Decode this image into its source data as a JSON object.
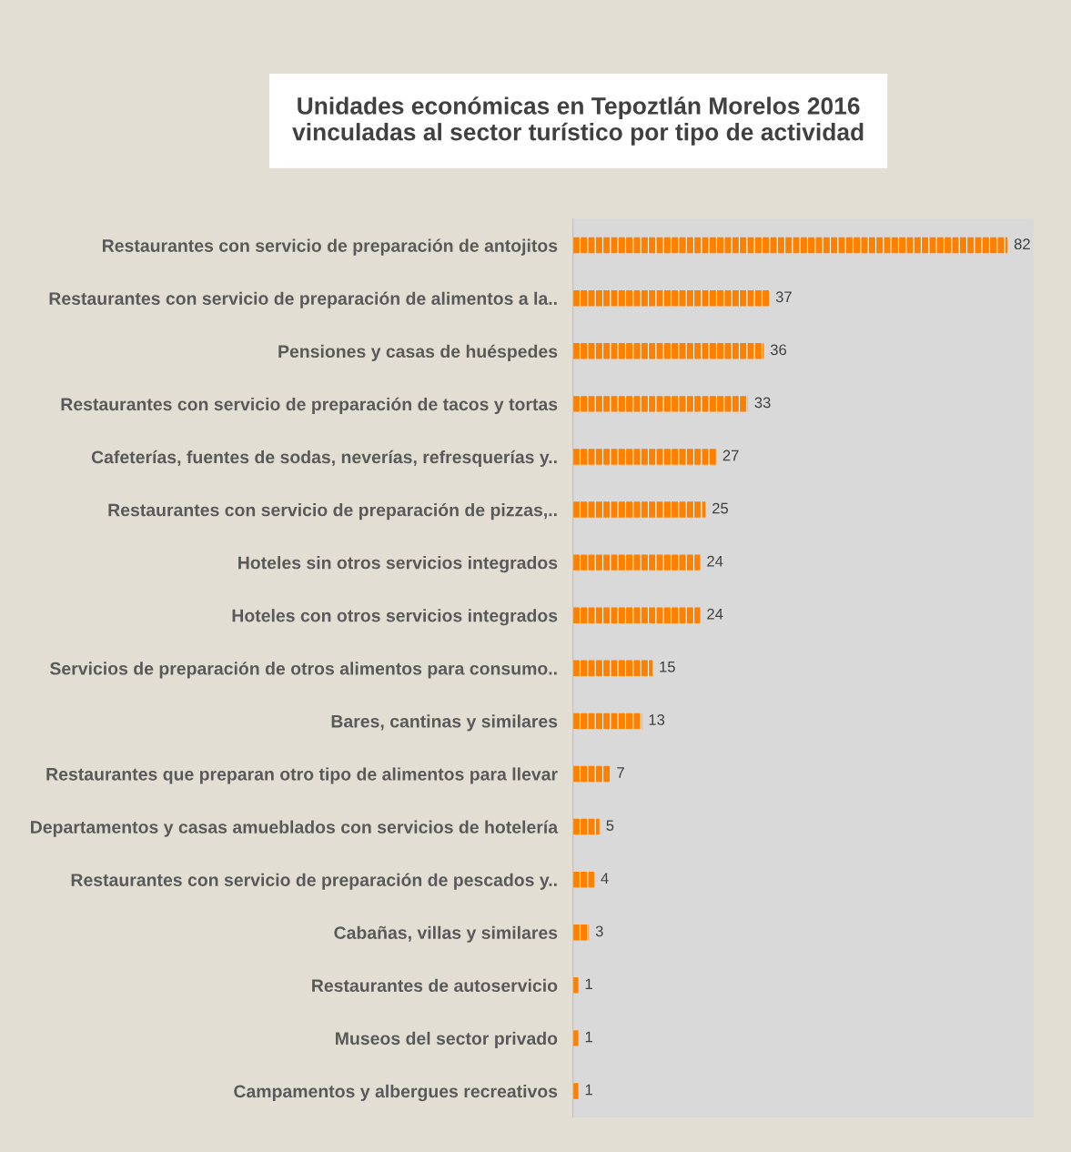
{
  "chart_data": {
    "type": "bar",
    "orientation": "horizontal",
    "title": "Unidades económicas en Tepoztlán Morelos 2016\nvinculadas al sector turístico por tipo de actividad",
    "categories": [
      "Restaurantes con servicio de preparación de antojitos",
      "Restaurantes con servicio de preparación de alimentos a la..",
      "Pensiones y casas de huéspedes",
      "Restaurantes con servicio de preparación de tacos y tortas",
      "Cafeterías, fuentes de sodas, neverías, refresquerías y..",
      "Restaurantes con servicio de preparación de pizzas,..",
      "Hoteles sin otros servicios integrados",
      "Hoteles con otros servicios integrados",
      "Servicios de preparación de otros alimentos para consumo..",
      "Bares, cantinas y similares",
      "Restaurantes que preparan otro tipo de alimentos para llevar",
      "Departamentos y casas amueblados con servicios de hotelería",
      "Restaurantes con servicio de preparación de pescados y..",
      "Cabañas, villas y similares",
      "Restaurantes de autoservicio",
      "Museos del sector privado",
      "Campamentos y albergues recreativos"
    ],
    "values": [
      82,
      37,
      36,
      33,
      27,
      25,
      24,
      24,
      15,
      13,
      7,
      5,
      4,
      3,
      1,
      1,
      1
    ],
    "color": "#ff8000",
    "data_labels": true,
    "grid": false,
    "legend": false
  }
}
